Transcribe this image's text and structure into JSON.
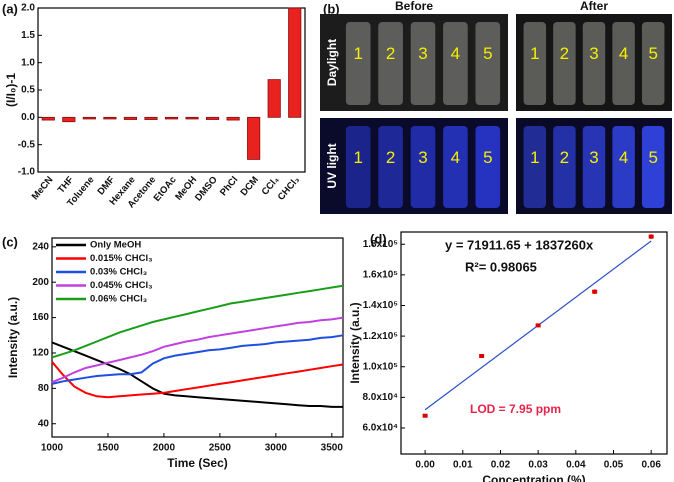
{
  "chart_data": [
    {
      "type": "bar",
      "panel_label": "(a)",
      "y_label": "(I/I₀)-1",
      "categories": [
        "MeCN",
        "THF",
        "Toluene",
        "DMF",
        "Hexane",
        "Acetone",
        "EtOAc",
        "MeOH",
        "DMSO",
        "PhCl",
        "DCM",
        "CCl₄",
        "CHCl₃"
      ],
      "values": [
        -0.05,
        -0.08,
        -0.03,
        -0.03,
        -0.04,
        -0.04,
        -0.03,
        -0.03,
        -0.04,
        -0.05,
        -0.77,
        0.69,
        2.0
      ],
      "color": "#e8231f",
      "ylim": [
        -1,
        2
      ],
      "yticks": [
        {
          "value": -1,
          "label": "-1.0"
        },
        {
          "value": -0.5,
          "label": "-0.5"
        },
        {
          "value": 0,
          "label": "0.0"
        },
        {
          "value": 0.5,
          "label": "0.5"
        },
        {
          "value": 1,
          "label": "1.0"
        },
        {
          "value": 1.5,
          "label": "1.5"
        },
        {
          "value": 2,
          "label": "2.0"
        }
      ]
    },
    {
      "type": "line",
      "panel_label": "(c)",
      "x_label": "Time (Sec)",
      "y_label": "Intensity (a.u.)",
      "x": [
        1000,
        1100,
        1200,
        1300,
        1400,
        1500,
        1600,
        1700,
        1800,
        1900,
        2000,
        2100,
        2200,
        2300,
        2400,
        2500,
        2600,
        2700,
        2800,
        2900,
        3000,
        3100,
        3200,
        3300,
        3400,
        3500,
        3600
      ],
      "series": [
        {
          "name": "Only  MeOH",
          "color": "#000000",
          "values": [
            132,
            127,
            122,
            117,
            112,
            107,
            102,
            96,
            88,
            80,
            74,
            72,
            71,
            70,
            69,
            68,
            67,
            66,
            65,
            64,
            63,
            62,
            61,
            60,
            60,
            59,
            59
          ]
        },
        {
          "name": "0.015% CHCl₃",
          "color": "#ff0000",
          "values": [
            110,
            95,
            82,
            75,
            71,
            70,
            71,
            72,
            73,
            74,
            75,
            77,
            79,
            81,
            83,
            85,
            87,
            89,
            91,
            93,
            95,
            97,
            99,
            101,
            103,
            105,
            107
          ]
        },
        {
          "name": "0.03%  CHCl₃",
          "color": "#1f4fe0",
          "values": [
            85,
            88,
            90,
            92,
            94,
            95,
            96,
            96,
            98,
            108,
            114,
            117,
            119,
            121,
            123,
            124,
            126,
            128,
            129,
            130,
            132,
            133,
            134,
            135,
            137,
            138,
            140
          ]
        },
        {
          "name": "0.045% CHCl₃",
          "color": "#c040e0",
          "values": [
            87,
            92,
            98,
            103,
            106,
            109,
            112,
            115,
            118,
            122,
            127,
            130,
            133,
            135,
            138,
            140,
            142,
            144,
            146,
            148,
            150,
            152,
            154,
            155,
            157,
            158,
            160
          ]
        },
        {
          "name": "0.06%  CHCl₃",
          "color": "#1a9e1a",
          "values": [
            115,
            119,
            123,
            128,
            133,
            138,
            143,
            147,
            151,
            155,
            158,
            161,
            164,
            167,
            170,
            173,
            176,
            178,
            180,
            182,
            184,
            186,
            188,
            190,
            192,
            194,
            196
          ]
        }
      ],
      "xlim": [
        1000,
        3600
      ],
      "xticks": [
        1000,
        1500,
        2000,
        2500,
        3000,
        3500
      ],
      "ylim": [
        25,
        250
      ],
      "yticks": [
        40,
        80,
        120,
        160,
        200,
        240
      ]
    },
    {
      "type": "scatter",
      "panel_label": "(d)",
      "x_label": "Concentration (%)",
      "y_label": "Intensity  (a.u.)",
      "x": [
        0,
        0.015,
        0.03,
        0.045,
        0.06
      ],
      "series": [
        {
          "color": "#dd0000",
          "values": [
            68000,
            107000,
            127000,
            149000,
            185000
          ],
          "errors": [
            500,
            800,
            700,
            1500,
            1500
          ]
        }
      ],
      "fit_line": {
        "color": "#2a4fc8",
        "x": [
          0,
          0.06
        ],
        "values": [
          71911.65,
          182147.25
        ]
      },
      "annotations": [
        {
          "text": "y = 71911.65 + 1837260x",
          "color": "#111111"
        },
        {
          "text": "R²= 0.98065",
          "color": "#111111"
        },
        {
          "text": "LOD = 7.95 ppm",
          "color": "#e8234a"
        }
      ],
      "xlim": [
        -0.0064,
        0.0642
      ],
      "xticks": [
        {
          "value": 0,
          "label": "0.00"
        },
        {
          "value": 0.01,
          "label": "0.01"
        },
        {
          "value": 0.02,
          "label": "0.02"
        },
        {
          "value": 0.03,
          "label": "0.03"
        },
        {
          "value": 0.04,
          "label": "0.04"
        },
        {
          "value": 0.05,
          "label": "0.05"
        },
        {
          "value": 0.06,
          "label": "0.06"
        }
      ],
      "ylim": [
        43000,
        188000
      ],
      "yticks": [
        {
          "value": 60000,
          "label": "6.0x10⁴"
        },
        {
          "value": 80000,
          "label": "8.0x10⁴"
        },
        {
          "value": 100000,
          "label": "1.0x10⁵"
        },
        {
          "value": 120000,
          "label": "1.2x10⁵"
        },
        {
          "value": 140000,
          "label": "1.4x10⁵"
        },
        {
          "value": 160000,
          "label": "1.6x10⁵"
        },
        {
          "value": 180000,
          "label": "1.8x10⁵"
        }
      ]
    }
  ],
  "photo_panel": {
    "label": "(b)",
    "columns": [
      "Before",
      "After"
    ],
    "rows": [
      "Daylight",
      "UV light"
    ],
    "vial_numbers": [
      "1",
      "2",
      "3",
      "4",
      "5"
    ]
  }
}
